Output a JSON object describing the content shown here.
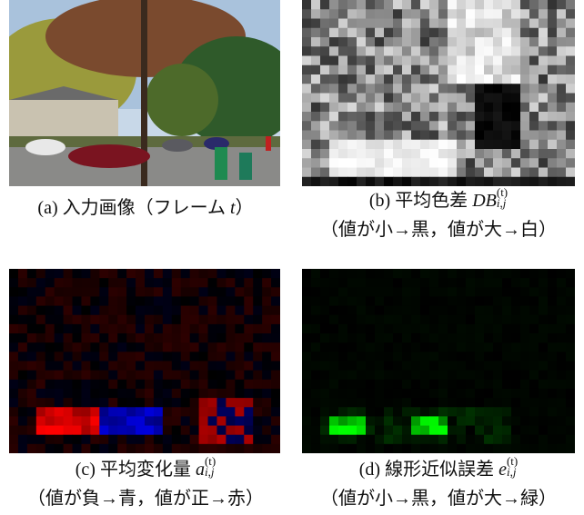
{
  "panels": [
    {
      "label": "(a)",
      "caption": "入力画像（フレーム",
      "symbol": "t",
      "suffix": "）"
    },
    {
      "label": "(b)",
      "caption": "平均色差",
      "symbol": "DB",
      "superscript": "(t)",
      "subscript": "i,j",
      "note": "（値が小→黒，値が大→白）"
    },
    {
      "label": "(c)",
      "caption": "平均変化量",
      "symbol": "a",
      "superscript": "(t)",
      "subscript": "i,j",
      "note": "（値が負→青，値が正→赤）"
    },
    {
      "label": "(d)",
      "caption": "線形近似誤差",
      "symbol": "e",
      "superscript": "(t)",
      "subscript": "i,j",
      "note": "（値が小→黒，値が大→緑）"
    }
  ]
}
